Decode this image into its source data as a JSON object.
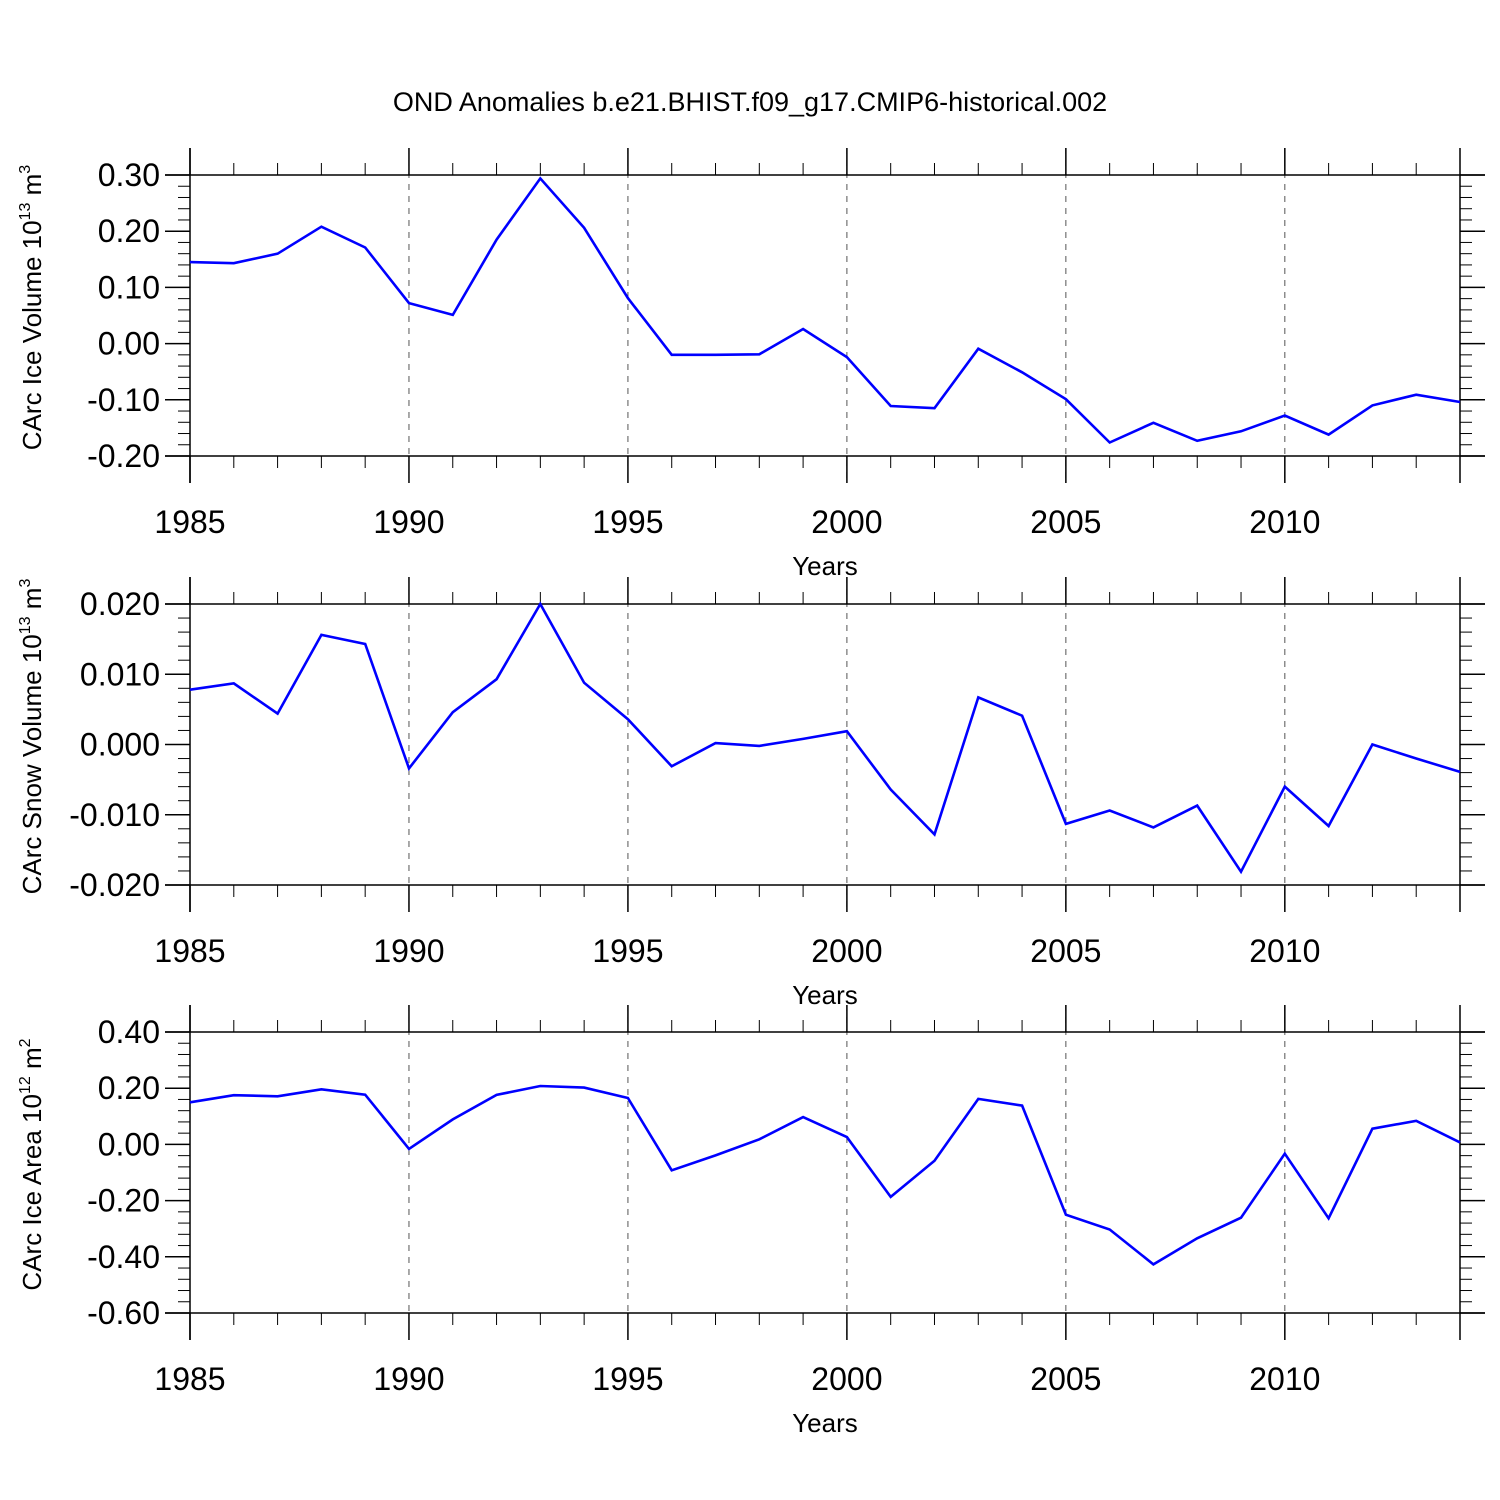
{
  "figure": {
    "title": "OND Anomalies b.e21.BHIST.f09_g17.CMIP6-historical.002"
  },
  "chart_data": [
    {
      "type": "line",
      "ylabel": {
        "base": "CArc Ice Volume 10",
        "exponent": "13",
        "unit": " m",
        "unit_exponent": "3"
      },
      "xlabel": "Years",
      "xlim": [
        1985,
        2014
      ],
      "ylim": [
        -0.2,
        0.3
      ],
      "ytick_step": 0.1,
      "ytick_decimals": 2,
      "xticks": [
        1985,
        1990,
        1995,
        2000,
        2005,
        2010
      ],
      "grid": "dashed vertical at major x ticks",
      "line_color": "#0000ff",
      "series": [
        {
          "x": [
            1985,
            1986,
            1987,
            1988,
            1989,
            1990,
            1991,
            1992,
            1993,
            1994,
            1995,
            1996,
            1997,
            1998,
            1999,
            2000,
            2001,
            2002,
            2003,
            2004,
            2005,
            2006,
            2007,
            2008,
            2009,
            2010,
            2011,
            2012,
            2013,
            2014
          ],
          "values": [
            0.145,
            0.143,
            0.16,
            0.208,
            0.171,
            0.072,
            0.051,
            0.185,
            0.294,
            0.206,
            0.081,
            -0.02,
            -0.02,
            -0.019,
            0.026,
            -0.024,
            -0.111,
            -0.115,
            -0.009,
            -0.051,
            -0.099,
            -0.176,
            -0.141,
            -0.173,
            -0.156,
            -0.128,
            -0.162,
            -0.11,
            -0.091,
            -0.104
          ]
        }
      ]
    },
    {
      "type": "line",
      "ylabel": {
        "base": "CArc Snow Volume 10",
        "exponent": "13",
        "unit": " m",
        "unit_exponent": "3"
      },
      "xlabel": "Years",
      "xlim": [
        1985,
        2014
      ],
      "ylim": [
        -0.02,
        0.02
      ],
      "ytick_step": 0.01,
      "ytick_decimals": 3,
      "xticks": [
        1985,
        1990,
        1995,
        2000,
        2005,
        2010
      ],
      "grid": "dashed vertical at major x ticks",
      "line_color": "#0000ff",
      "series": [
        {
          "x": [
            1985,
            1986,
            1987,
            1988,
            1989,
            1990,
            1991,
            1992,
            1993,
            1994,
            1995,
            1996,
            1997,
            1998,
            1999,
            2000,
            2001,
            2002,
            2003,
            2004,
            2005,
            2006,
            2007,
            2008,
            2009,
            2010,
            2011,
            2012,
            2013,
            2014
          ],
          "values": [
            0.0078,
            0.0087,
            0.0044,
            0.0156,
            0.0143,
            -0.0034,
            0.0046,
            0.0093,
            0.02,
            0.0088,
            0.0036,
            -0.0031,
            0.0002,
            -0.0002,
            0.0008,
            0.0019,
            -0.0064,
            -0.0128,
            0.0067,
            0.0041,
            -0.0113,
            -0.0094,
            -0.0118,
            -0.0087,
            -0.0181,
            -0.006,
            -0.0116,
            0.0,
            -0.002,
            -0.0039
          ]
        }
      ]
    },
    {
      "type": "line",
      "ylabel": {
        "base": "CArc Ice Area 10",
        "exponent": "12",
        "unit": " m",
        "unit_exponent": "2"
      },
      "xlabel": "Years",
      "xlim": [
        1985,
        2014
      ],
      "ylim": [
        -0.6,
        0.4
      ],
      "ytick_step": 0.2,
      "ytick_decimals": 2,
      "xticks": [
        1985,
        1990,
        1995,
        2000,
        2005,
        2010
      ],
      "grid": "dashed vertical at major x ticks",
      "line_color": "#0000ff",
      "series": [
        {
          "x": [
            1985,
            1986,
            1987,
            1988,
            1989,
            1990,
            1991,
            1992,
            1993,
            1994,
            1995,
            1996,
            1997,
            1998,
            1999,
            2000,
            2001,
            2002,
            2003,
            2004,
            2005,
            2006,
            2007,
            2008,
            2009,
            2010,
            2011,
            2012,
            2013,
            2014
          ],
          "values": [
            0.15,
            0.175,
            0.171,
            0.196,
            0.177,
            -0.016,
            0.089,
            0.176,
            0.208,
            0.202,
            0.165,
            -0.092,
            -0.039,
            0.018,
            0.097,
            0.026,
            -0.187,
            -0.058,
            0.162,
            0.138,
            -0.25,
            -0.303,
            -0.427,
            -0.334,
            -0.261,
            -0.033,
            -0.263,
            0.056,
            0.084,
            0.007
          ]
        }
      ]
    }
  ]
}
